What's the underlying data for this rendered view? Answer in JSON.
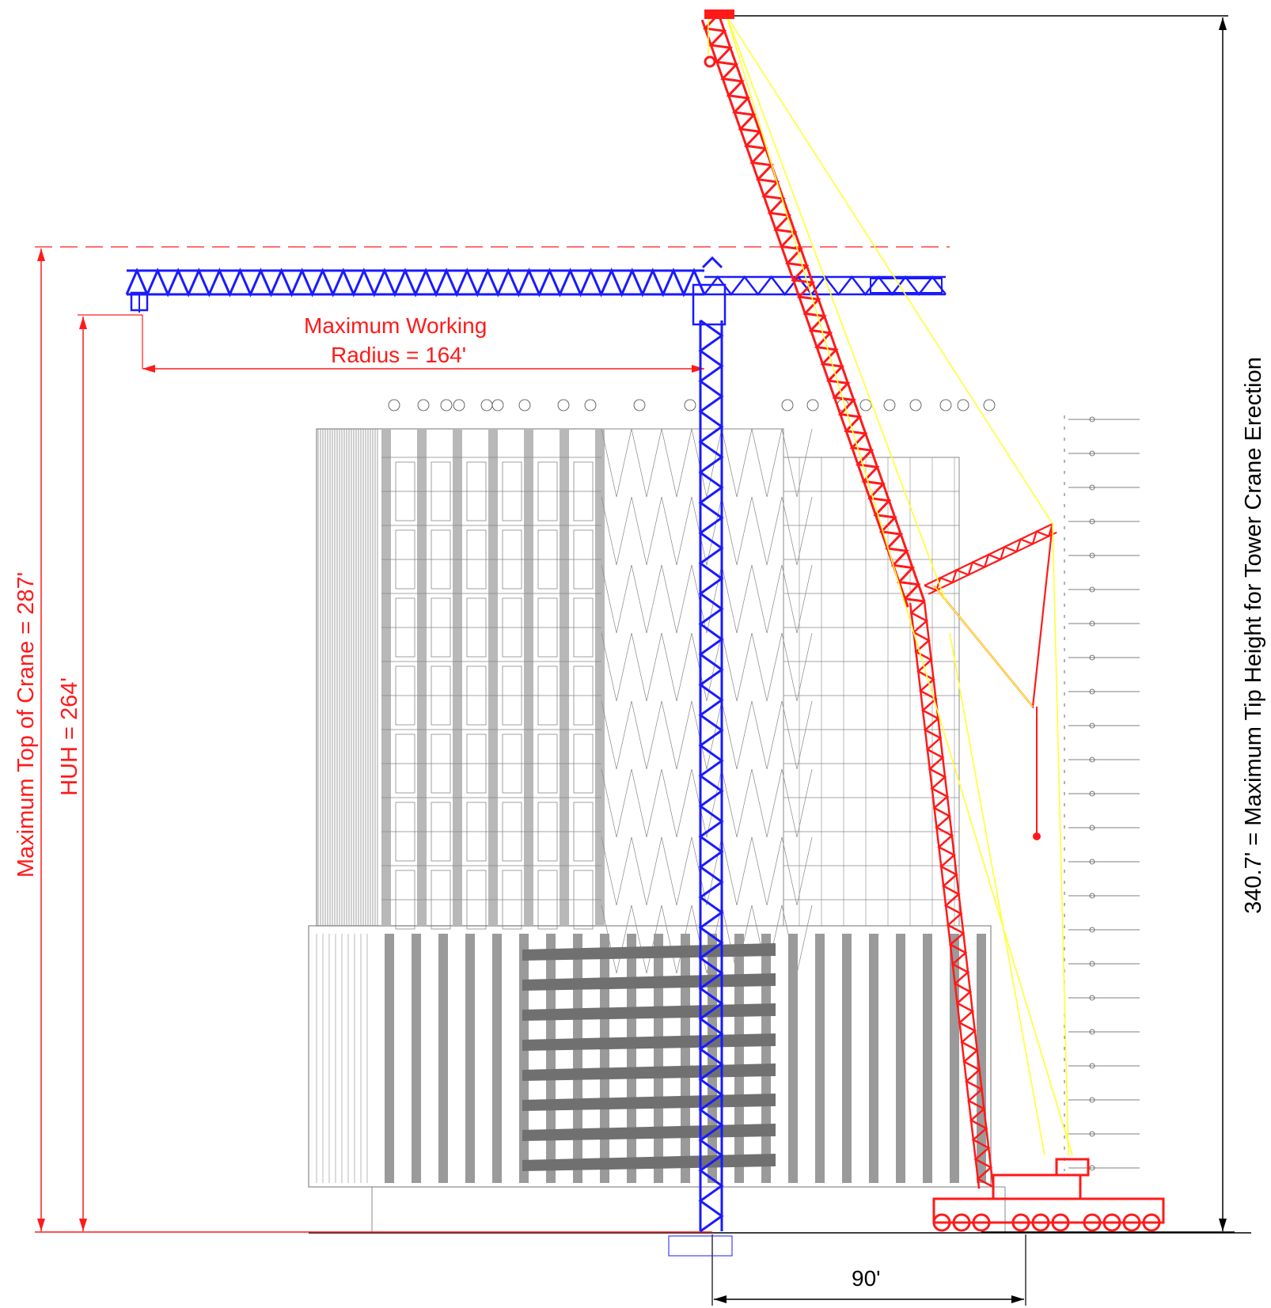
{
  "labels": {
    "working_radius_line1": "Maximum Working",
    "working_radius_line2": "Radius = 164'",
    "max_top": "Maximum Top of Crane = 287'",
    "huh": "HUH = 264'",
    "tip_height": "340.7' = Maximum Tip Height for Tower Crane Erection",
    "offset": "90'"
  },
  "colors": {
    "tower_crane": "#1a1aff",
    "mobile_crane": "#ff1a1a",
    "rigging": "#ffff33",
    "building": "#888888",
    "dimension_red": "#ff1a1a",
    "dimension_black": "#000000"
  }
}
